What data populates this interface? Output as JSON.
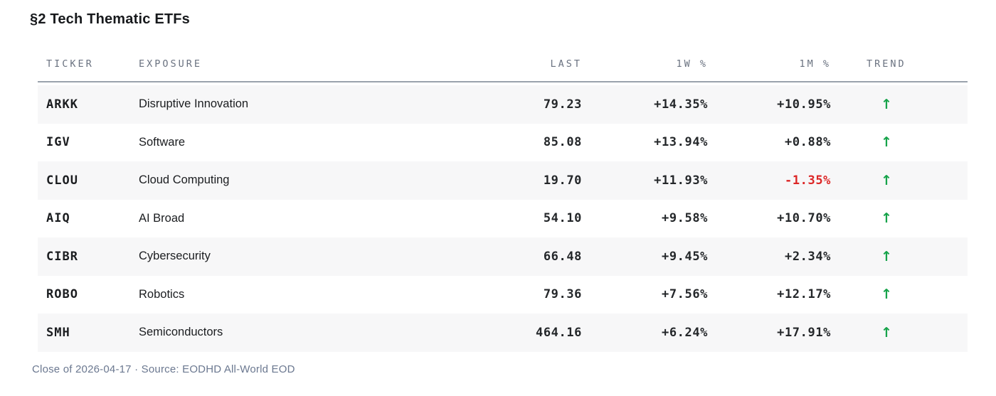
{
  "title": "§2 Tech Thematic ETFs",
  "table": {
    "columns": [
      {
        "key": "ticker",
        "label": "TICKER"
      },
      {
        "key": "exposure",
        "label": "EXPOSURE"
      },
      {
        "key": "last",
        "label": "LAST"
      },
      {
        "key": "w1",
        "label": "1W %"
      },
      {
        "key": "m1",
        "label": "1M %"
      },
      {
        "key": "trend",
        "label": "TREND"
      }
    ],
    "rows": [
      {
        "ticker": "ARKK",
        "exposure": "Disruptive Innovation",
        "last": "79.23",
        "w1": "+14.35%",
        "m1": "+10.95%",
        "trend": "up"
      },
      {
        "ticker": "IGV",
        "exposure": "Software",
        "last": "85.08",
        "w1": "+13.94%",
        "m1": "+0.88%",
        "trend": "up"
      },
      {
        "ticker": "CLOU",
        "exposure": "Cloud Computing",
        "last": "19.70",
        "w1": "+11.93%",
        "m1": "-1.35%",
        "trend": "up"
      },
      {
        "ticker": "AIQ",
        "exposure": "AI Broad",
        "last": "54.10",
        "w1": "+9.58%",
        "m1": "+10.70%",
        "trend": "up"
      },
      {
        "ticker": "CIBR",
        "exposure": "Cybersecurity",
        "last": "66.48",
        "w1": "+9.45%",
        "m1": "+2.34%",
        "trend": "up"
      },
      {
        "ticker": "ROBO",
        "exposure": "Robotics",
        "last": "79.36",
        "w1": "+7.56%",
        "m1": "+12.17%",
        "trend": "up"
      },
      {
        "ticker": "SMH",
        "exposure": "Semiconductors",
        "last": "464.16",
        "w1": "+6.24%",
        "m1": "+17.91%",
        "trend": "up"
      }
    ]
  },
  "icons": {
    "trend_up": "↑"
  },
  "colors": {
    "trend_up": "#16a34a",
    "negative": "#dc2626",
    "stripe": "#f7f7f8",
    "header_text": "#6a7280"
  },
  "footer": {
    "text": "Close of 2026-04-17 · Source: EODHD All-World EOD"
  }
}
